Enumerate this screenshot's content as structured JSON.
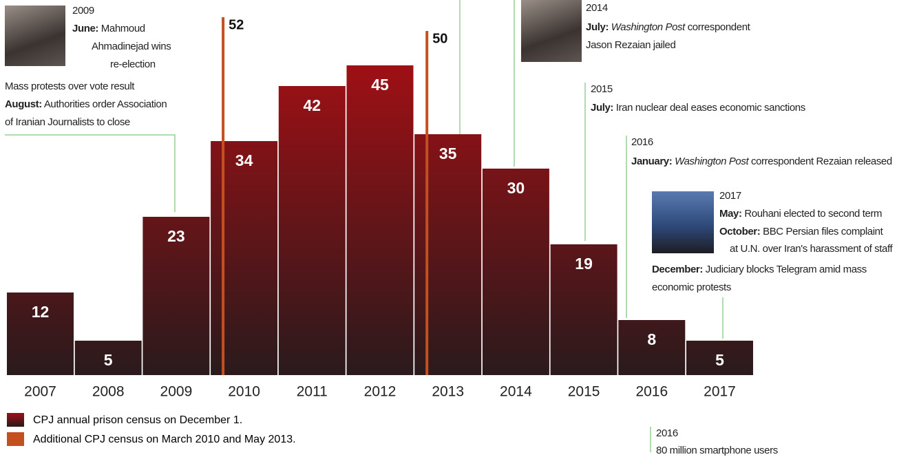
{
  "chart_data": {
    "type": "bar",
    "categories": [
      "2007",
      "2008",
      "2009",
      "2010",
      "2011",
      "2012",
      "2013",
      "2014",
      "2015",
      "2016",
      "2017"
    ],
    "series": [
      {
        "name": "CPJ annual prison census on December 1.",
        "color": "#9e1015",
        "values": [
          12,
          5,
          23,
          34,
          42,
          45,
          35,
          30,
          19,
          8,
          5
        ]
      },
      {
        "name": "Additional CPJ census on March 2010 and May 2013.",
        "color": "#c4501f",
        "values": [
          null,
          null,
          null,
          52,
          null,
          null,
          50,
          null,
          null,
          null,
          null
        ]
      }
    ],
    "ylim": [
      0,
      54.5
    ]
  },
  "annotations": [
    {
      "year": "2009",
      "lines": [
        [
          "June:",
          "Mahmoud"
        ],
        [
          "Ahmadinejad wins"
        ],
        [
          "re-election"
        ],
        [
          "Mass protests over vote result"
        ],
        [
          "August:",
          "Authorities order Association"
        ],
        [
          "of Iranian Journalists to close"
        ]
      ]
    },
    {
      "year": "2014",
      "lines": [
        [
          "July:",
          "Washington Post",
          "correspondent"
        ],
        [
          "Jason Rezaian jailed"
        ]
      ]
    },
    {
      "year": "2015",
      "lines": [
        [
          "July:",
          "Iran nuclear deal eases economic sanctions"
        ]
      ]
    },
    {
      "year": "2016",
      "lines": [
        [
          "January:",
          "Washington Post",
          "correspondent Rezaian released"
        ]
      ]
    },
    {
      "year": "2017",
      "lines": [
        [
          "May:",
          "Rouhani elected to second term"
        ],
        [
          "October:",
          "BBC Persian files complaint"
        ],
        [
          "at U.N. over Iran's harassment of staff"
        ],
        [
          "December:",
          "Judiciary blocks Telegram amid mass"
        ],
        [
          "economic protests"
        ]
      ]
    },
    {
      "year": "2016",
      "lines": [
        [
          "80 million smartphone users"
        ]
      ]
    }
  ]
}
